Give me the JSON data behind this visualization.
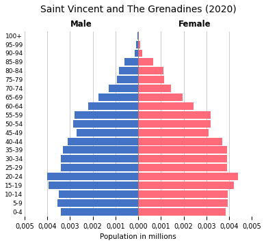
{
  "title": "Saint Vincent and The Grenadines (2020)",
  "xlabel": "Population in millions",
  "age_groups": [
    "0-4",
    "5-9",
    "10-14",
    "15-19",
    "20-24",
    "25-29",
    "30-34",
    "35-39",
    "40-44",
    "45-49",
    "50-54",
    "55-59",
    "60-64",
    "65-69",
    "70-74",
    "75-79",
    "80-84",
    "85-89",
    "90-94",
    "95-99",
    "100+"
  ],
  "male": [
    0.0034,
    0.00355,
    0.0035,
    0.00395,
    0.004,
    0.0034,
    0.0034,
    0.0033,
    0.0031,
    0.0027,
    0.00285,
    0.0028,
    0.0022,
    0.00175,
    0.0013,
    0.00095,
    0.00085,
    0.0006,
    0.00015,
    8e-05,
    2e-05
  ],
  "female": [
    0.00385,
    0.00395,
    0.00395,
    0.0042,
    0.0044,
    0.0039,
    0.0039,
    0.0039,
    0.0037,
    0.0031,
    0.0032,
    0.0032,
    0.00245,
    0.00195,
    0.00145,
    0.00115,
    0.0011,
    0.00065,
    0.00018,
    0.0001,
    3e-05
  ],
  "male_color": "#4472C4",
  "female_color": "#FF6B7A",
  "xlim": 0.005,
  "background_color": "#FFFFFF",
  "grid_color": "#CCCCCC",
  "male_label": "Male",
  "female_label": "Female"
}
